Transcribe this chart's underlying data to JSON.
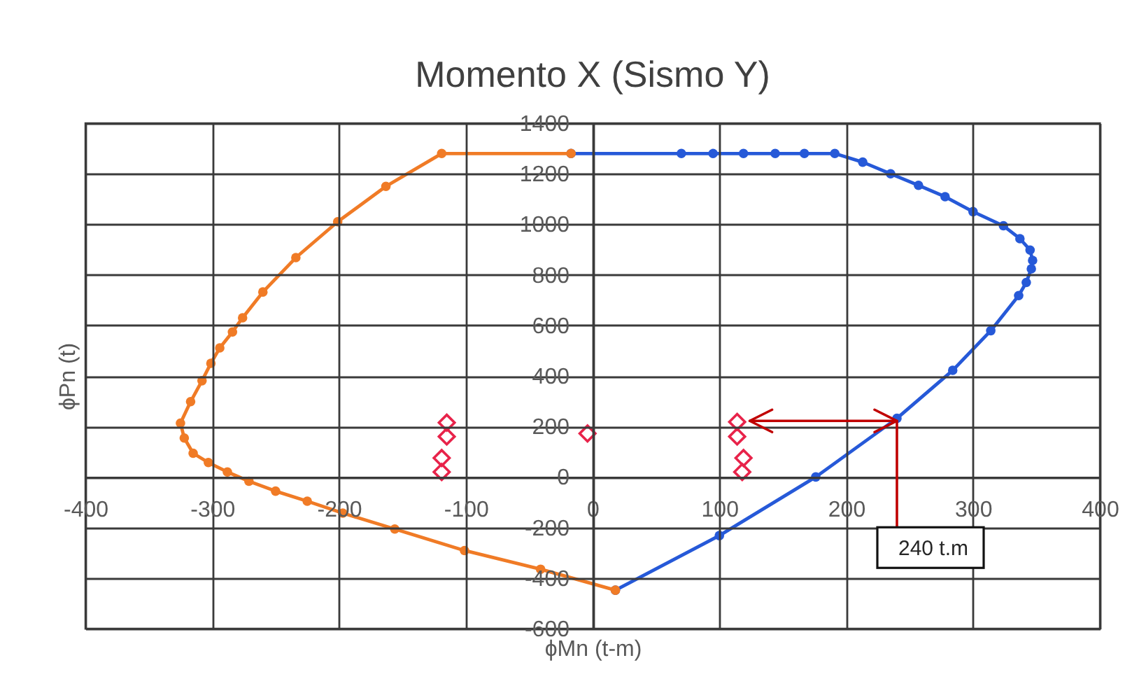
{
  "chart_data": {
    "type": "line",
    "title": "Momento X (Sismo Y)",
    "xlabel": "ϕMn (t-m)",
    "ylabel": "ϕPn (t)",
    "xlim": [
      -400,
      400
    ],
    "xticks": [
      -400,
      -300,
      -200,
      -100,
      0,
      100,
      200,
      300,
      400
    ],
    "ylim": [
      -600,
      1400
    ],
    "yticks": [
      -600,
      -400,
      -200,
      0,
      200,
      400,
      600,
      800,
      1000,
      1200,
      1400
    ],
    "grid": true,
    "marker": "circle",
    "series": [
      {
        "color": "#2659d8",
        "x": [
          -17,
          70,
          95,
          119,
          144,
          167,
          191,
          213,
          235,
          257,
          278,
          300,
          324,
          337,
          345,
          347,
          346,
          342,
          336,
          314,
          284,
          240,
          176,
          100,
          18
        ],
        "values": [
          1280,
          1280,
          1280,
          1280,
          1280,
          1280,
          1280,
          1246,
          1200,
          1154,
          1109,
          1050,
          994,
          943,
          898,
          857,
          824,
          770,
          718,
          579,
          422,
          232,
          0,
          -232,
          -448
        ]
      },
      {
        "color": "#f07b26",
        "x": [
          -17,
          -119,
          -163,
          -201,
          -234,
          -260,
          -276,
          -284,
          -294,
          -301,
          -308,
          -317,
          -325,
          -322,
          -315,
          -303,
          -288,
          -271,
          -250,
          -225,
          -197,
          -156,
          -101,
          -41,
          18
        ],
        "values": [
          1280,
          1280,
          1150,
          1010,
          868,
          732,
          630,
          574,
          511,
          450,
          381,
          298,
          213,
          154,
          94,
          57,
          20,
          -17,
          -56,
          -96,
          -143,
          -206,
          -291,
          -365,
          -448
        ]
      },
      {
        "type": "scatter",
        "marker": "diamond",
        "color": "#e8234a",
        "x": [
          -115,
          -115,
          -119,
          -119,
          -4,
          114,
          114,
          119,
          118
        ],
        "values": [
          215,
          160,
          75,
          20,
          172,
          218,
          160,
          75,
          20
        ]
      }
    ],
    "annotations": [
      {
        "text": "240 t.m",
        "x": 240,
        "y": 222
      }
    ]
  }
}
